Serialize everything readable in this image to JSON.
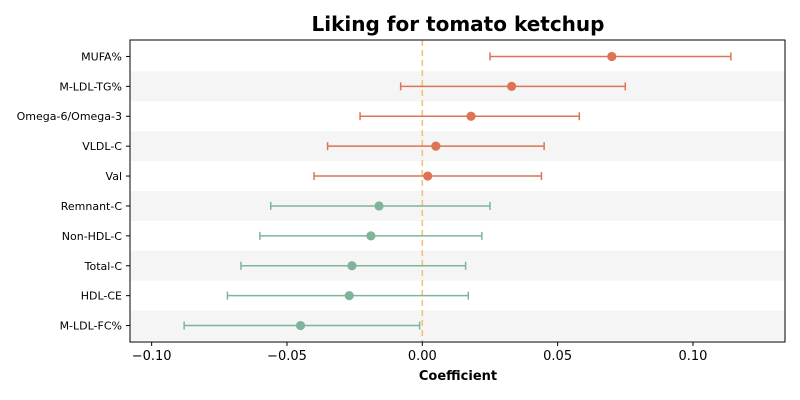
{
  "chart_data": {
    "type": "forest",
    "title": "Liking for tomato ketchup",
    "xlabel": "Coefficient",
    "xlim": [
      -0.108,
      0.134
    ],
    "xticks": [
      -0.1,
      -0.05,
      0.0,
      0.05,
      0.1
    ],
    "xtick_labels": [
      "−0.10",
      "−0.05",
      "0.00",
      "0.05",
      "0.10"
    ],
    "reference_line": 0,
    "colors": {
      "positive": "#dd7455",
      "negative": "#7fb49a",
      "reference": "#f2c27b",
      "band": "#f5f5f5"
    },
    "items": [
      {
        "label": "MUFA%",
        "estimate": 0.07,
        "ci_low": 0.025,
        "ci_high": 0.114
      },
      {
        "label": "M-LDL-TG%",
        "estimate": 0.033,
        "ci_low": -0.008,
        "ci_high": 0.075
      },
      {
        "label": "Omega-6/Omega-3",
        "estimate": 0.018,
        "ci_low": -0.023,
        "ci_high": 0.058
      },
      {
        "label": "VLDL-C",
        "estimate": 0.005,
        "ci_low": -0.035,
        "ci_high": 0.045
      },
      {
        "label": "Val",
        "estimate": 0.002,
        "ci_low": -0.04,
        "ci_high": 0.044
      },
      {
        "label": "Remnant-C",
        "estimate": -0.016,
        "ci_low": -0.056,
        "ci_high": 0.025
      },
      {
        "label": "Non-HDL-C",
        "estimate": -0.019,
        "ci_low": -0.06,
        "ci_high": 0.022
      },
      {
        "label": "Total-C",
        "estimate": -0.026,
        "ci_low": -0.067,
        "ci_high": 0.016
      },
      {
        "label": "HDL-CE",
        "estimate": -0.027,
        "ci_low": -0.072,
        "ci_high": 0.017
      },
      {
        "label": "M-LDL-FC%",
        "estimate": -0.045,
        "ci_low": -0.088,
        "ci_high": -0.001
      }
    ]
  }
}
